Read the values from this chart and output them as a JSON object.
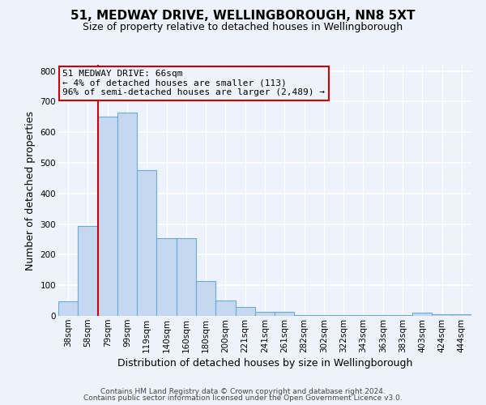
{
  "title": "51, MEDWAY DRIVE, WELLINGBOROUGH, NN8 5XT",
  "subtitle": "Size of property relative to detached houses in Wellingborough",
  "xlabel": "Distribution of detached houses by size in Wellingborough",
  "ylabel": "Number of detached properties",
  "bar_labels": [
    "38sqm",
    "58sqm",
    "79sqm",
    "99sqm",
    "119sqm",
    "140sqm",
    "160sqm",
    "180sqm",
    "200sqm",
    "221sqm",
    "241sqm",
    "261sqm",
    "282sqm",
    "302sqm",
    "322sqm",
    "343sqm",
    "363sqm",
    "383sqm",
    "403sqm",
    "424sqm",
    "444sqm"
  ],
  "bar_heights": [
    47,
    293,
    651,
    663,
    477,
    253,
    253,
    113,
    50,
    28,
    14,
    14,
    2,
    2,
    2,
    2,
    2,
    2,
    10,
    4,
    6
  ],
  "bar_color": "#c5d8f0",
  "bar_edge_color": "#6aaad4",
  "ylim": [
    0,
    820
  ],
  "yticks": [
    0,
    100,
    200,
    300,
    400,
    500,
    600,
    700,
    800
  ],
  "vline_x": 1.5,
  "vline_color": "#cc0000",
  "annotation_line1": "51 MEDWAY DRIVE: 66sqm",
  "annotation_line2": "← 4% of detached houses are smaller (113)",
  "annotation_line3": "96% of semi-detached houses are larger (2,489) →",
  "annotation_box_color": "#cc0000",
  "footer_line1": "Contains HM Land Registry data © Crown copyright and database right 2024.",
  "footer_line2": "Contains public sector information licensed under the Open Government Licence v3.0.",
  "background_color": "#eef2fb",
  "grid_color": "#ffffff",
  "title_fontsize": 11,
  "subtitle_fontsize": 9,
  "axis_label_fontsize": 9,
  "tick_fontsize": 7.5,
  "footer_fontsize": 6.5,
  "annotation_fontsize": 8
}
